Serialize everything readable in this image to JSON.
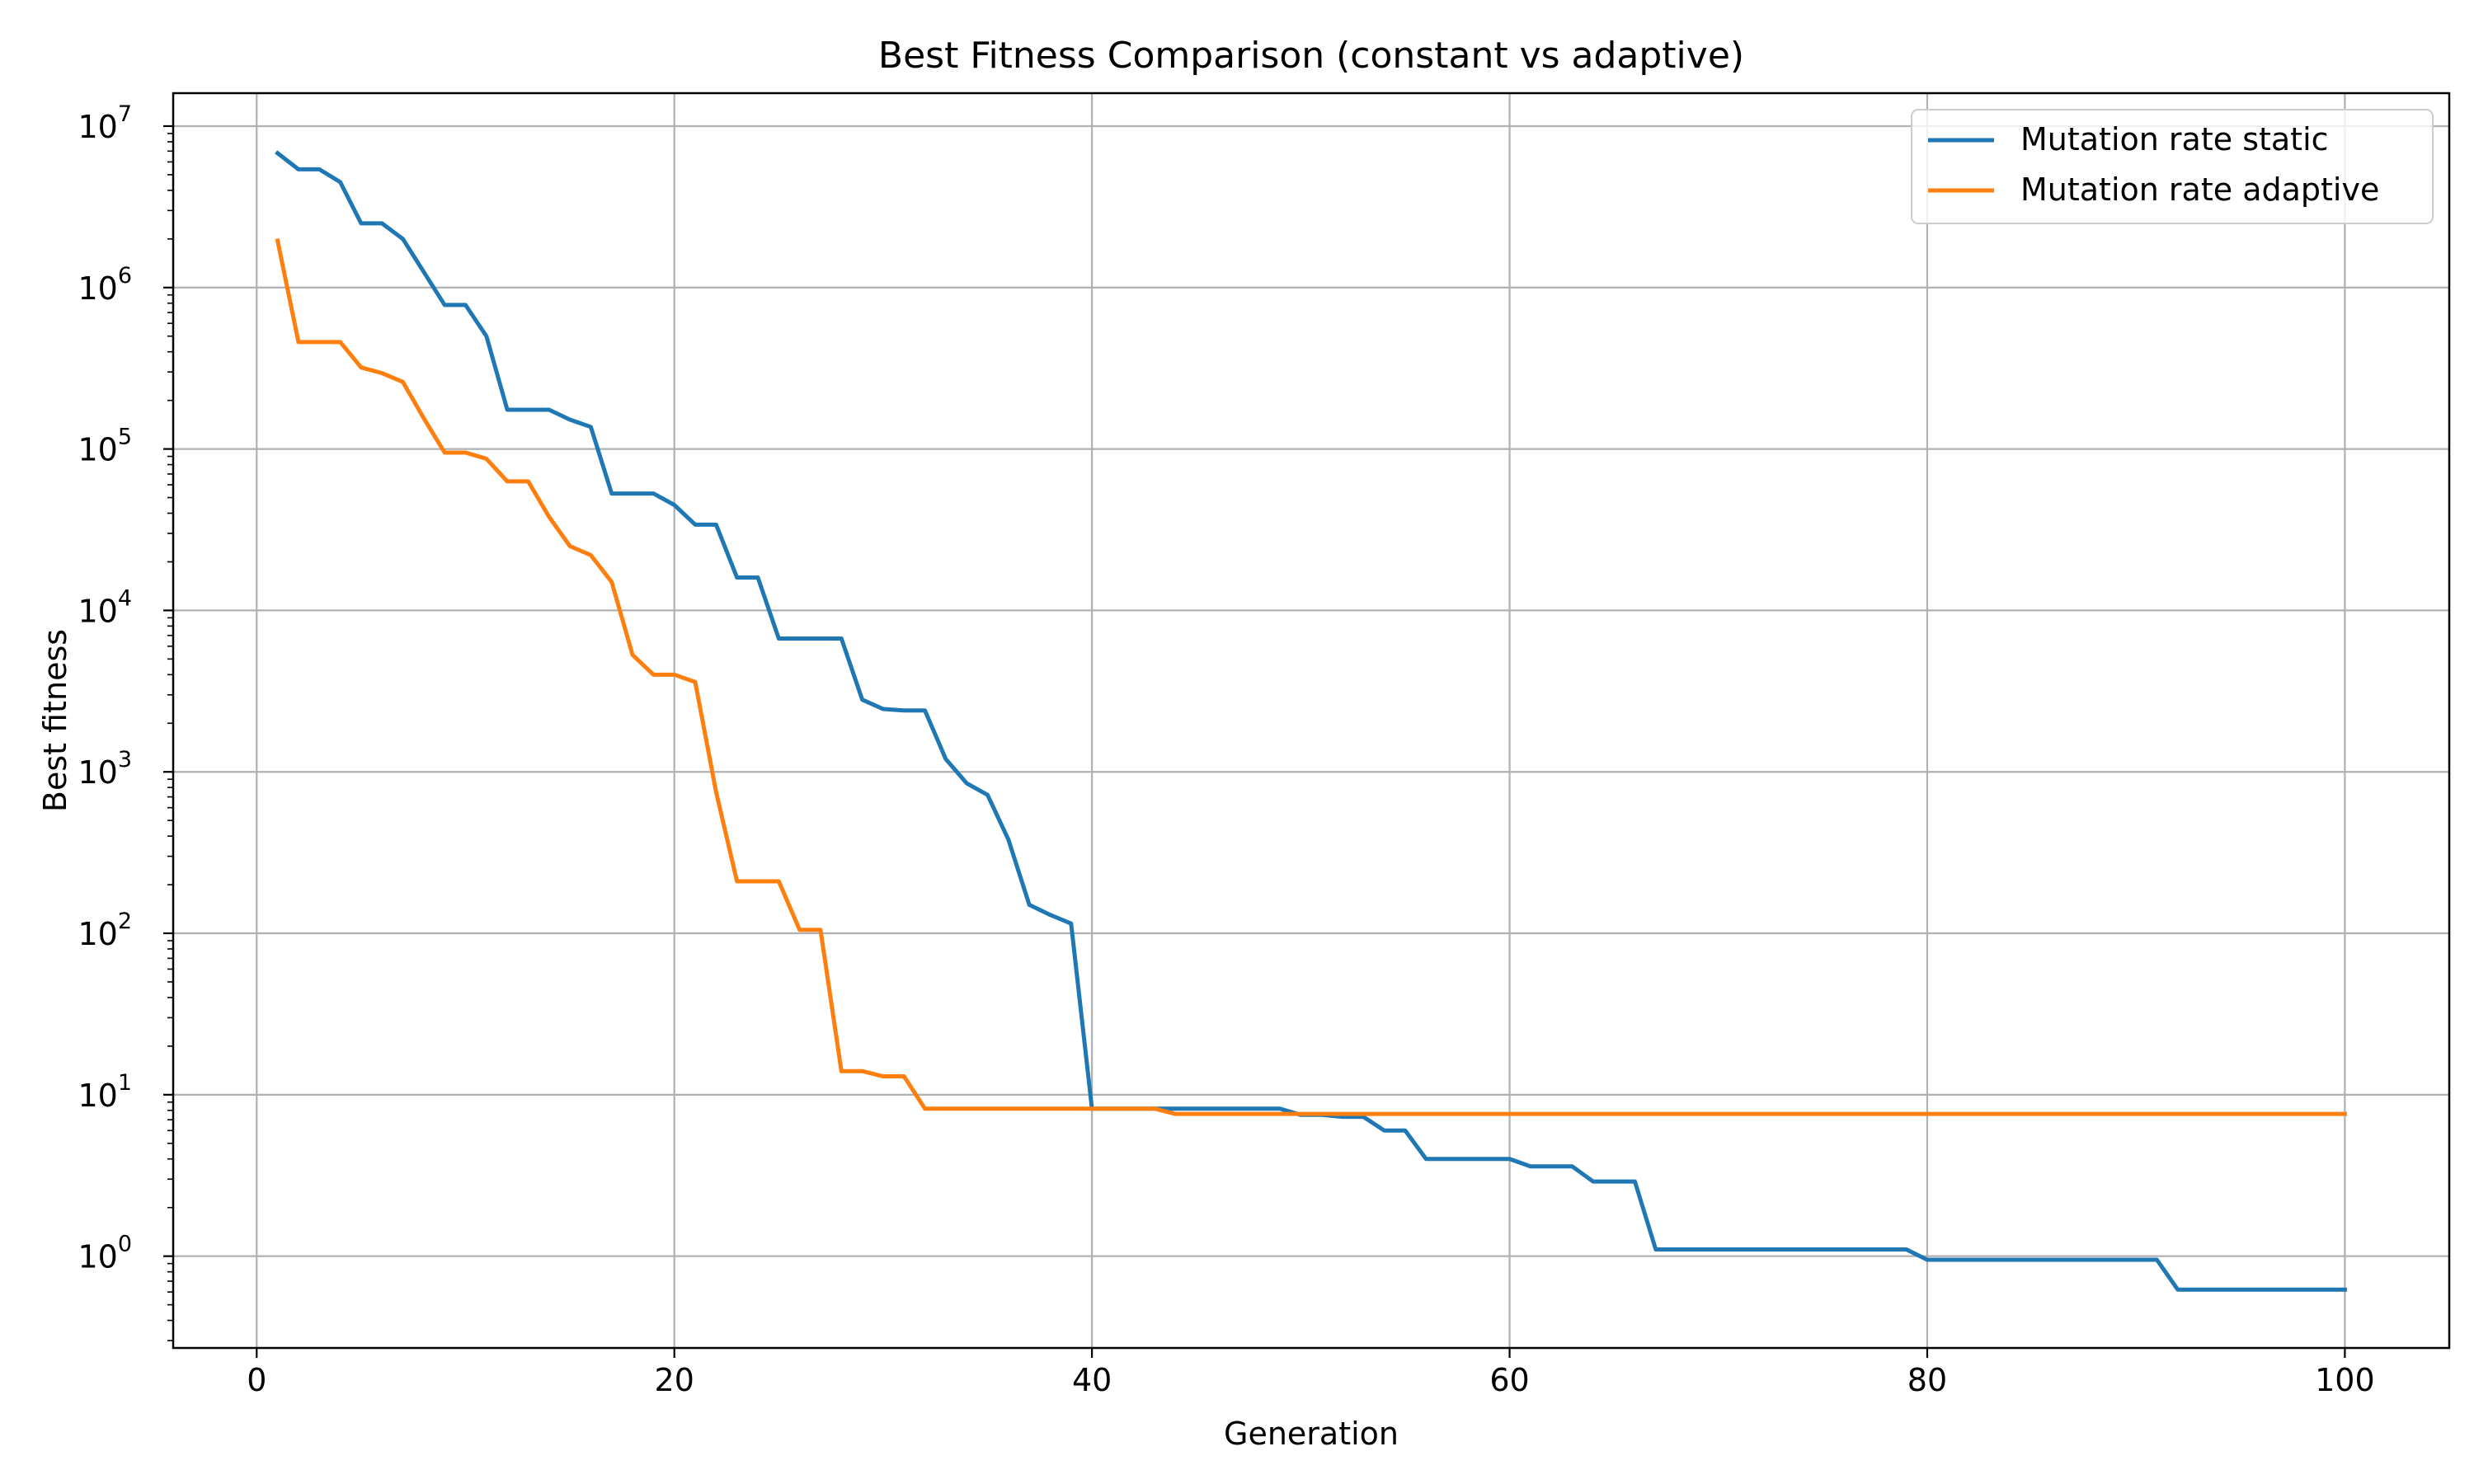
{
  "chart_data": {
    "type": "line",
    "title": "Best Fitness Comparison (constant vs adaptive)",
    "xlabel": "Generation",
    "ylabel": "Best fitness",
    "xlim": [
      -4,
      105
    ],
    "ylim": [
      0.27,
      16000000
    ],
    "yscale": "log",
    "grid": true,
    "legend_position": "top-right",
    "xticks": [
      0,
      20,
      40,
      60,
      80,
      100
    ],
    "yticks": [
      {
        "base": "10",
        "exp": "0"
      },
      {
        "base": "10",
        "exp": "1"
      },
      {
        "base": "10",
        "exp": "2"
      },
      {
        "base": "10",
        "exp": "3"
      },
      {
        "base": "10",
        "exp": "4"
      },
      {
        "base": "10",
        "exp": "5"
      },
      {
        "base": "10",
        "exp": "6"
      },
      {
        "base": "10",
        "exp": "7"
      }
    ],
    "x": [
      1,
      2,
      3,
      4,
      5,
      6,
      7,
      8,
      9,
      10,
      11,
      12,
      13,
      14,
      15,
      16,
      17,
      18,
      19,
      20,
      21,
      22,
      23,
      24,
      25,
      26,
      27,
      28,
      29,
      30,
      31,
      32,
      33,
      34,
      35,
      36,
      37,
      38,
      39,
      40,
      41,
      42,
      43,
      44,
      45,
      46,
      47,
      48,
      49,
      50,
      51,
      52,
      53,
      54,
      55,
      56,
      57,
      58,
      59,
      60,
      61,
      62,
      63,
      64,
      65,
      66,
      67,
      68,
      69,
      70,
      71,
      72,
      73,
      74,
      75,
      76,
      77,
      78,
      79,
      80,
      81,
      82,
      83,
      84,
      85,
      86,
      87,
      88,
      89,
      90,
      91,
      92,
      93,
      94,
      95,
      96,
      97,
      98,
      99,
      100
    ],
    "series": [
      {
        "name": "Mutation rate static",
        "color": "#1f77b4",
        "values": [
          6800000,
          5400000,
          5400000,
          4500000,
          2500000,
          2500000,
          2000000,
          1250000,
          780000,
          780000,
          500000,
          175000,
          175000,
          175000,
          152000,
          137000,
          53000,
          53000,
          53000,
          45000,
          34000,
          34000,
          16000,
          16000,
          6700,
          6700,
          6700,
          6700,
          2800,
          2450,
          2400,
          2400,
          1200,
          850,
          720,
          380,
          150,
          130,
          115,
          8.2,
          8.2,
          8.2,
          8.2,
          8.2,
          8.2,
          8.2,
          8.2,
          8.2,
          8.2,
          7.5,
          7.5,
          7.3,
          7.3,
          6.0,
          6.0,
          4.0,
          4.0,
          4.0,
          4.0,
          4.0,
          3.6,
          3.6,
          3.6,
          2.9,
          2.9,
          2.9,
          1.1,
          1.1,
          1.1,
          1.1,
          1.1,
          1.1,
          1.1,
          1.1,
          1.1,
          1.1,
          1.1,
          1.1,
          1.1,
          0.95,
          0.95,
          0.95,
          0.95,
          0.95,
          0.95,
          0.95,
          0.95,
          0.95,
          0.95,
          0.95,
          0.95,
          0.62,
          0.62,
          0.62,
          0.62,
          0.62,
          0.62,
          0.62,
          0.62,
          0.62
        ]
      },
      {
        "name": "Mutation rate adaptive",
        "color": "#ff7f0e",
        "values": [
          1950000,
          460000,
          460000,
          460000,
          320000,
          295000,
          260000,
          155000,
          95000,
          95000,
          87000,
          63000,
          63000,
          38000,
          25000,
          22000,
          15000,
          5300,
          4000,
          4000,
          3600,
          750,
          210,
          210,
          210,
          105,
          105,
          14,
          14,
          13,
          13,
          8.2,
          8.2,
          8.2,
          8.2,
          8.2,
          8.2,
          8.2,
          8.2,
          8.2,
          8.2,
          8.2,
          8.2,
          7.6,
          7.6,
          7.6,
          7.6,
          7.6,
          7.6,
          7.6,
          7.6,
          7.6,
          7.6,
          7.6,
          7.6,
          7.6,
          7.6,
          7.6,
          7.6,
          7.6,
          7.6,
          7.6,
          7.6,
          7.6,
          7.6,
          7.6,
          7.6,
          7.6,
          7.6,
          7.6,
          7.6,
          7.6,
          7.6,
          7.6,
          7.6,
          7.6,
          7.6,
          7.6,
          7.6,
          7.6,
          7.6,
          7.6,
          7.6,
          7.6,
          7.6,
          7.6,
          7.6,
          7.6,
          7.6,
          7.6,
          7.6,
          7.6,
          7.6,
          7.6,
          7.6,
          7.6,
          7.6,
          7.6,
          7.6,
          7.6
        ]
      }
    ]
  }
}
